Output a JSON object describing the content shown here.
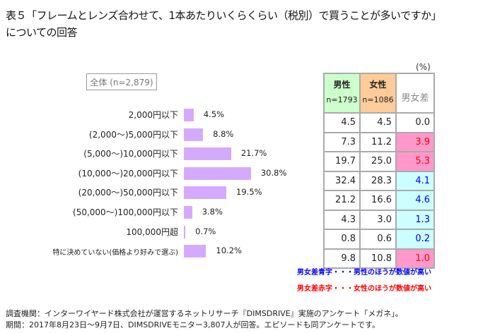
{
  "title_line1": "表５「フレームとレンズ合わせて、1本あたりいくらくらい（税別）で買うことが多いですか」",
  "title_line2": "についての回答",
  "total_label": "全体 (n=2,879)",
  "unit": "(%)",
  "table_header": {
    "male": "男性",
    "male_n": "n=1793",
    "female": "女性",
    "female_n": "n=1086",
    "diff": "男女差"
  },
  "colors": {
    "bar": "#d4aaff",
    "male": "#ccffcc",
    "female": "#ffcc99",
    "blue_bg": "#ccffff",
    "pink_bg": "#ff99cc",
    "blue": "#0000ff",
    "red": "#ff0000"
  },
  "chart_data": {
    "type": "bar",
    "title": "表５「フレームとレンズ合わせて、1本あたりいくらくらい（税別）で買うことが多いですか」についての回答",
    "categories": [
      "2,000円以下",
      "(2,000～)5,000円以下",
      "(5,000～)10,000円以下",
      "(10,000～)20,000円以下",
      "(20,000～)50,000円以下",
      "(50,000～)100,000円以下",
      "100,000円超",
      "特に決めていない(価格より好みで選ぶ)"
    ],
    "values": [
      4.5,
      8.8,
      21.7,
      30.8,
      19.5,
      3.8,
      0.7,
      10.2
    ],
    "value_labels": [
      "4.5%",
      "8.8%",
      "21.7%",
      "30.8%",
      "19.5%",
      "3.8%",
      "0.7%",
      "10.2%"
    ],
    "table": {
      "male": [
        "4.5",
        "7.3",
        "19.7",
        "32.4",
        "21.2",
        "4.3",
        "0.8",
        "9.8"
      ],
      "female": [
        "4.5",
        "11.2",
        "25.0",
        "28.3",
        "16.6",
        "3.0",
        "0.6",
        "10.8"
      ],
      "diff": [
        "0.0",
        "3.9",
        "5.3",
        "4.1",
        "4.6",
        "1.3",
        "0.2",
        "1.0"
      ],
      "diff_dir": [
        "none",
        "female",
        "female",
        "male",
        "male",
        "male",
        "male",
        "female"
      ]
    }
  },
  "notes": {
    "blue": "男女差青字・・・男性のほうが数値が高い",
    "red": "男女差赤字・・・女性のほうが数値が高い"
  },
  "footer": {
    "line1": "調査機関：インターワイヤード株式会社が運営するネットリサーチ『DIMSDRIVE』実施のアンケート「メガネ」。",
    "line2": "期間：2017年8月23日～9月7日、DIMSDRIVEモニター3,807人が回答。エピソードも同アンケートです。"
  }
}
